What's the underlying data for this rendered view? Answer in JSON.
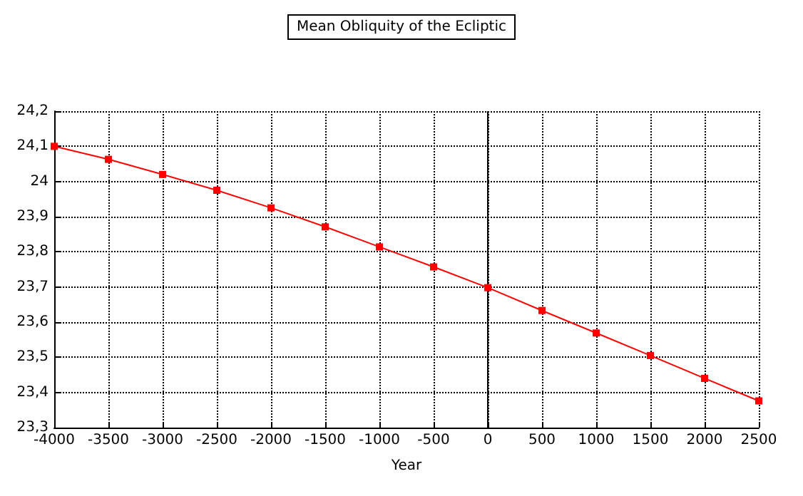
{
  "chart_data": {
    "type": "line",
    "title": "Mean Obliquity of the Ecliptic",
    "xlabel": "Year",
    "x": [
      -4000,
      -3500,
      -3000,
      -2500,
      -2000,
      -1500,
      -1000,
      -500,
      0,
      500,
      1000,
      1500,
      2000,
      2500
    ],
    "series": [
      {
        "color": "#ff0000",
        "values": [
          24.1,
          24.063,
          24.02,
          23.975,
          23.925,
          23.871,
          23.814,
          23.757,
          23.698,
          23.633,
          23.569,
          23.505,
          23.44,
          23.376
        ]
      }
    ],
    "xlim": [
      -4000,
      2500
    ],
    "xticks": [
      -4000,
      -3500,
      -3000,
      -2500,
      -2000,
      -1500,
      -1000,
      -500,
      0,
      500,
      1000,
      1500,
      2000,
      2500
    ],
    "ylim": [
      23.3,
      24.2
    ],
    "yticks": [
      {
        "value": 23.3,
        "label": "23,3"
      },
      {
        "value": 23.4,
        "label": "23,4"
      },
      {
        "value": 23.5,
        "label": "23,5"
      },
      {
        "value": 23.6,
        "label": "23,6"
      },
      {
        "value": 23.7,
        "label": "23,7"
      },
      {
        "value": 23.8,
        "label": "23,8"
      },
      {
        "value": 23.9,
        "label": "23,9"
      },
      {
        "value": 24,
        "label": "24"
      },
      {
        "value": 24.1,
        "label": "24,1"
      },
      {
        "value": 24.2,
        "label": "24,2"
      }
    ],
    "ref_lines": [
      {
        "axis": "x",
        "value": 0,
        "color": "#000000",
        "line_style": "solid"
      }
    ],
    "grid": true,
    "marker": "square",
    "line_style": "solid"
  }
}
